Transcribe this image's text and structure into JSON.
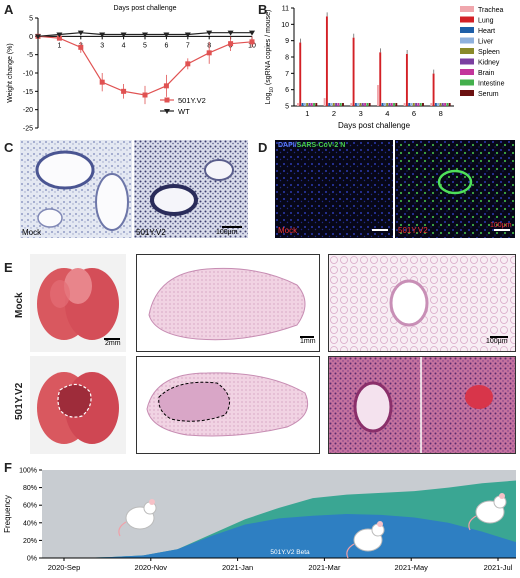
{
  "panels": {
    "A": "A",
    "B": "B",
    "C": "C",
    "D": "D",
    "E": "E",
    "F": "F"
  },
  "panel_a": {
    "chart_data": {
      "type": "line",
      "title": "Days post challenge",
      "ylabel": "Weight change (%)",
      "x": [
        0,
        1,
        2,
        3,
        4,
        5,
        6,
        7,
        8,
        9,
        10
      ],
      "ylim": [
        -25,
        5
      ],
      "yticks": [
        5,
        0,
        -5,
        -10,
        -15,
        -20,
        -25
      ],
      "series": [
        {
          "name": "501Y.V2",
          "color": "#e05252",
          "values": [
            0,
            -0.5,
            -3,
            -12.5,
            -15,
            -16,
            -13.5,
            -7.5,
            -4.5,
            -2,
            -1.5
          ],
          "err": [
            0,
            0.5,
            1.5,
            2.5,
            2,
            2.5,
            3,
            1.5,
            3,
            2,
            1.5
          ]
        },
        {
          "name": "WT",
          "color": "#222222",
          "values": [
            0,
            0.5,
            1,
            0.5,
            0.5,
            0.5,
            0.5,
            0.5,
            1,
            1,
            1
          ],
          "err": [
            0,
            0.5,
            0.5,
            0.5,
            0.5,
            0.5,
            0.5,
            0.5,
            0.5,
            0.5,
            0.5
          ]
        }
      ]
    }
  },
  "panel_b": {
    "chart_data": {
      "type": "bar",
      "xlabel": "Days post challenge",
      "ylabel_prefix": "Log",
      "ylabel_sub": "10",
      "ylabel_suffix": " (sgRNA copies / mouse)",
      "categories": [
        "1",
        "2",
        "3",
        "4",
        "6",
        "8"
      ],
      "ylim": [
        5,
        11
      ],
      "yticks": [
        5,
        6,
        7,
        8,
        9,
        10,
        11
      ],
      "series": [
        {
          "name": "Trachea",
          "color": "#f0a7ad",
          "values": [
            5.0,
            5.3,
            5.0,
            6.1,
            5.0,
            5.0
          ]
        },
        {
          "name": "Lung",
          "color": "#d32026",
          "values": [
            8.7,
            10.3,
            9.0,
            8.1,
            8.0,
            6.8
          ]
        },
        {
          "name": "Heart",
          "color": "#1e5fa8",
          "values": [
            5,
            5,
            5,
            5,
            5,
            5
          ]
        },
        {
          "name": "Liver",
          "color": "#8fb1dd",
          "values": [
            5,
            5,
            5,
            5,
            5,
            5
          ]
        },
        {
          "name": "Spleen",
          "color": "#8a8a2a",
          "values": [
            5,
            5,
            5,
            5,
            5,
            5
          ]
        },
        {
          "name": "Kidney",
          "color": "#7b3fa0",
          "values": [
            5,
            5,
            5,
            5,
            5,
            5
          ]
        },
        {
          "name": "Brain",
          "color": "#c3359b",
          "values": [
            5,
            5,
            5,
            5,
            5,
            5
          ]
        },
        {
          "name": "Intestine",
          "color": "#44b04d",
          "values": [
            5,
            5,
            5,
            5,
            5,
            5
          ]
        },
        {
          "name": "Serum",
          "color": "#6b1010",
          "values": [
            5,
            5,
            5,
            5,
            5,
            5
          ]
        }
      ]
    }
  },
  "panel_c": {
    "left_label": "Mock",
    "right_label": "501Y.V2",
    "scale": "100μm"
  },
  "panel_d": {
    "title_dapi": "DAPI/",
    "title_n": "SARS-CoV-2 N",
    "left_label": "Mock",
    "right_label": "501Y.V2",
    "scale": "100μm"
  },
  "panel_e": {
    "row_mock": "Mock",
    "row_variant": "501Y.V2",
    "scale_gross": "2mm",
    "scale_section": "1mm",
    "scale_zoom": "100μm"
  },
  "panel_f": {
    "chart_data": {
      "type": "area",
      "ylabel": "Frequency",
      "yticks": [
        "100%",
        "80%",
        "60%",
        "40%",
        "20%",
        "0%"
      ],
      "x_ticks": [
        "2020-Sep",
        "2020-Nov",
        "2021-Jan",
        "2021-Mar",
        "2021-May",
        "2021-Jul"
      ],
      "series": [
        {
          "name": "501Y.V2 Beta",
          "color": "#2e7fc2",
          "values": [
            0,
            0,
            1,
            3,
            10,
            25,
            38,
            45,
            48,
            50,
            49,
            46,
            40,
            30,
            18
          ]
        },
        {
          "name": "",
          "color": "#3aa693",
          "values": [
            0,
            0,
            0,
            0,
            0,
            2,
            6,
            12,
            20,
            22,
            25,
            30,
            40,
            55,
            70
          ]
        },
        {
          "name": "",
          "color": "#c8ccd1",
          "values": [
            100,
            100,
            99,
            97,
            90,
            73,
            56,
            43,
            32,
            28,
            26,
            24,
            20,
            15,
            12
          ]
        }
      ],
      "area_label": "501Y.V2 Beta"
    }
  }
}
